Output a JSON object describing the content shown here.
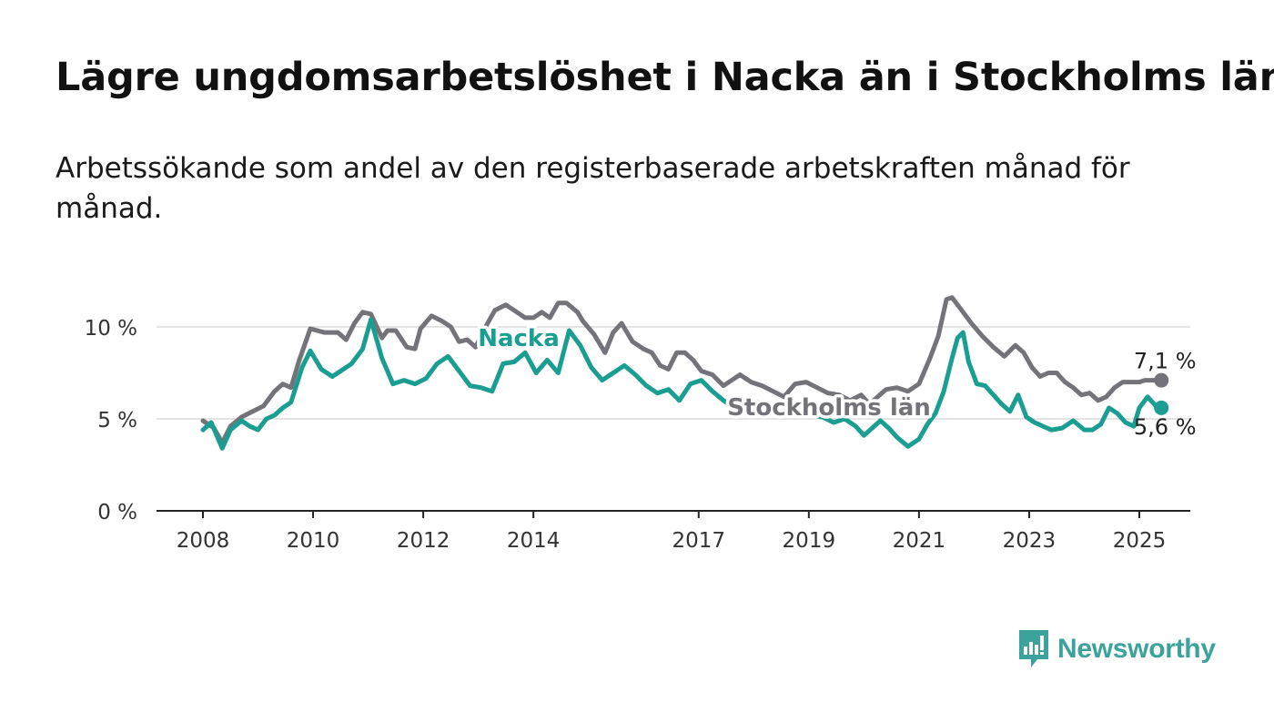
{
  "title": "Lägre ungdomsarbetslöshet i Nacka än i Stockholms län",
  "subtitle": "Arbetssökande som andel av den registerbaserade arbetskraften månad för månad.",
  "brand": {
    "name": "Newsworthy"
  },
  "chart_data": {
    "type": "line",
    "title": "Lägre ungdomsarbetslöshet i Nacka än i Stockholms län",
    "subtitle": "Arbetssökande som andel av den registerbaserade arbetskraften månad för månad.",
    "xlabel": "",
    "ylabel": "",
    "ylim": [
      0,
      12
    ],
    "xlim": [
      2007.7,
      2025.9
    ],
    "y_ticks": [
      {
        "value": 0,
        "label": "0 %"
      },
      {
        "value": 5,
        "label": "5 %"
      },
      {
        "value": 10,
        "label": "10 %"
      }
    ],
    "x_ticks": [
      {
        "value": 2008,
        "label": "2008"
      },
      {
        "value": 2010,
        "label": "2010"
      },
      {
        "value": 2012,
        "label": "2012"
      },
      {
        "value": 2014,
        "label": "2014"
      },
      {
        "value": 2017,
        "label": "2017"
      },
      {
        "value": 2019,
        "label": "2019"
      },
      {
        "value": 2021,
        "label": "2021"
      },
      {
        "value": 2023,
        "label": "2023"
      },
      {
        "value": 2025,
        "label": "2025"
      }
    ],
    "grid": true,
    "legend": "direct labels on lines",
    "end_labels": true,
    "series": [
      {
        "name": "Stockholms län",
        "color": "#74737a",
        "end_label": "7,1 %",
        "points": [
          [
            2008.0,
            4.9
          ],
          [
            2008.2,
            4.5
          ],
          [
            2008.35,
            3.7
          ],
          [
            2008.5,
            4.6
          ],
          [
            2008.7,
            5.1
          ],
          [
            2008.9,
            5.4
          ],
          [
            2009.1,
            5.7
          ],
          [
            2009.3,
            6.5
          ],
          [
            2009.45,
            6.9
          ],
          [
            2009.6,
            6.7
          ],
          [
            2009.75,
            8.2
          ],
          [
            2009.95,
            9.9
          ],
          [
            2010.2,
            9.7
          ],
          [
            2010.45,
            9.7
          ],
          [
            2010.6,
            9.3
          ],
          [
            2010.75,
            10.2
          ],
          [
            2010.9,
            10.8
          ],
          [
            2011.05,
            10.7
          ],
          [
            2011.25,
            9.4
          ],
          [
            2011.35,
            9.8
          ],
          [
            2011.5,
            9.8
          ],
          [
            2011.7,
            8.9
          ],
          [
            2011.85,
            8.8
          ],
          [
            2011.95,
            9.9
          ],
          [
            2012.15,
            10.6
          ],
          [
            2012.35,
            10.3
          ],
          [
            2012.5,
            10.0
          ],
          [
            2012.65,
            9.2
          ],
          [
            2012.8,
            9.3
          ],
          [
            2012.95,
            8.9
          ],
          [
            2013.15,
            10.1
          ],
          [
            2013.3,
            10.9
          ],
          [
            2013.5,
            11.2
          ],
          [
            2013.7,
            10.8
          ],
          [
            2013.85,
            10.5
          ],
          [
            2014.0,
            10.5
          ],
          [
            2014.15,
            10.8
          ],
          [
            2014.3,
            10.5
          ],
          [
            2014.45,
            11.3
          ],
          [
            2014.6,
            11.3
          ],
          [
            2014.8,
            10.8
          ],
          [
            2014.9,
            10.3
          ],
          [
            2015.1,
            9.6
          ],
          [
            2015.3,
            8.6
          ],
          [
            2015.45,
            9.7
          ],
          [
            2015.6,
            10.2
          ],
          [
            2015.8,
            9.2
          ],
          [
            2016.0,
            8.8
          ],
          [
            2016.15,
            8.6
          ],
          [
            2016.3,
            7.9
          ],
          [
            2016.45,
            7.7
          ],
          [
            2016.6,
            8.6
          ],
          [
            2016.75,
            8.6
          ],
          [
            2016.9,
            8.2
          ],
          [
            2017.05,
            7.6
          ],
          [
            2017.25,
            7.4
          ],
          [
            2017.45,
            6.8
          ],
          [
            2017.6,
            7.1
          ],
          [
            2017.75,
            7.4
          ],
          [
            2017.95,
            7.0
          ],
          [
            2018.15,
            6.8
          ],
          [
            2018.35,
            6.5
          ],
          [
            2018.55,
            6.2
          ],
          [
            2018.75,
            6.9
          ],
          [
            2018.95,
            7.0
          ],
          [
            2019.15,
            6.7
          ],
          [
            2019.35,
            6.4
          ],
          [
            2019.55,
            6.3
          ],
          [
            2019.75,
            6.0
          ],
          [
            2019.95,
            6.3
          ],
          [
            2020.1,
            5.8
          ],
          [
            2020.25,
            6.2
          ],
          [
            2020.4,
            6.6
          ],
          [
            2020.6,
            6.7
          ],
          [
            2020.8,
            6.5
          ],
          [
            2021.0,
            6.9
          ],
          [
            2021.2,
            8.3
          ],
          [
            2021.35,
            9.5
          ],
          [
            2021.5,
            11.5
          ],
          [
            2021.6,
            11.6
          ],
          [
            2021.75,
            11.0
          ],
          [
            2021.95,
            10.2
          ],
          [
            2022.15,
            9.5
          ],
          [
            2022.35,
            8.9
          ],
          [
            2022.55,
            8.4
          ],
          [
            2022.75,
            9.0
          ],
          [
            2022.9,
            8.6
          ],
          [
            2023.05,
            7.8
          ],
          [
            2023.2,
            7.3
          ],
          [
            2023.35,
            7.5
          ],
          [
            2023.5,
            7.5
          ],
          [
            2023.65,
            7.0
          ],
          [
            2023.8,
            6.7
          ],
          [
            2023.95,
            6.3
          ],
          [
            2024.1,
            6.4
          ],
          [
            2024.25,
            6.0
          ],
          [
            2024.4,
            6.2
          ],
          [
            2024.55,
            6.7
          ],
          [
            2024.7,
            7.0
          ],
          [
            2024.85,
            7.0
          ],
          [
            2025.0,
            7.0
          ],
          [
            2025.1,
            7.1
          ],
          [
            2025.25,
            7.1
          ],
          [
            2025.4,
            7.1
          ]
        ]
      },
      {
        "name": "Nacka",
        "color": "#1a9e92",
        "end_label": "5,6 %",
        "points": [
          [
            2008.0,
            4.4
          ],
          [
            2008.15,
            4.8
          ],
          [
            2008.35,
            3.4
          ],
          [
            2008.5,
            4.4
          ],
          [
            2008.7,
            4.9
          ],
          [
            2008.85,
            4.6
          ],
          [
            2009.0,
            4.4
          ],
          [
            2009.15,
            5.0
          ],
          [
            2009.3,
            5.2
          ],
          [
            2009.45,
            5.6
          ],
          [
            2009.6,
            5.9
          ],
          [
            2009.8,
            7.8
          ],
          [
            2009.95,
            8.7
          ],
          [
            2010.15,
            7.7
          ],
          [
            2010.35,
            7.3
          ],
          [
            2010.55,
            7.7
          ],
          [
            2010.7,
            8.0
          ],
          [
            2010.9,
            8.8
          ],
          [
            2011.05,
            10.4
          ],
          [
            2011.25,
            8.3
          ],
          [
            2011.45,
            6.9
          ],
          [
            2011.65,
            7.1
          ],
          [
            2011.85,
            6.9
          ],
          [
            2012.05,
            7.2
          ],
          [
            2012.25,
            8.0
          ],
          [
            2012.45,
            8.4
          ],
          [
            2012.65,
            7.6
          ],
          [
            2012.85,
            6.8
          ],
          [
            2013.05,
            6.7
          ],
          [
            2013.25,
            6.5
          ],
          [
            2013.45,
            8.0
          ],
          [
            2013.65,
            8.1
          ],
          [
            2013.85,
            8.6
          ],
          [
            2014.05,
            7.5
          ],
          [
            2014.25,
            8.2
          ],
          [
            2014.45,
            7.5
          ],
          [
            2014.65,
            9.8
          ],
          [
            2014.85,
            9.0
          ],
          [
            2015.05,
            7.8
          ],
          [
            2015.25,
            7.1
          ],
          [
            2015.45,
            7.5
          ],
          [
            2015.65,
            7.9
          ],
          [
            2015.85,
            7.4
          ],
          [
            2016.05,
            6.8
          ],
          [
            2016.25,
            6.4
          ],
          [
            2016.45,
            6.6
          ],
          [
            2016.65,
            6.0
          ],
          [
            2016.85,
            6.9
          ],
          [
            2017.05,
            7.1
          ],
          [
            2017.25,
            6.5
          ],
          [
            2017.45,
            6.0
          ],
          [
            2017.65,
            5.6
          ],
          [
            2017.85,
            5.3
          ],
          [
            2018.05,
            5.9
          ],
          [
            2018.25,
            5.5
          ],
          [
            2018.45,
            5.4
          ],
          [
            2018.65,
            5.4
          ],
          [
            2018.85,
            5.2
          ],
          [
            2019.05,
            5.2
          ],
          [
            2019.25,
            5.1
          ],
          [
            2019.45,
            4.8
          ],
          [
            2019.65,
            5.0
          ],
          [
            2019.85,
            4.6
          ],
          [
            2020.0,
            4.1
          ],
          [
            2020.15,
            4.5
          ],
          [
            2020.3,
            4.9
          ],
          [
            2020.45,
            4.5
          ],
          [
            2020.6,
            4.0
          ],
          [
            2020.8,
            3.5
          ],
          [
            2021.0,
            3.9
          ],
          [
            2021.15,
            4.7
          ],
          [
            2021.3,
            5.3
          ],
          [
            2021.45,
            6.5
          ],
          [
            2021.6,
            8.3
          ],
          [
            2021.7,
            9.4
          ],
          [
            2021.8,
            9.7
          ],
          [
            2021.9,
            8.1
          ],
          [
            2022.05,
            6.9
          ],
          [
            2022.2,
            6.8
          ],
          [
            2022.35,
            6.3
          ],
          [
            2022.5,
            5.8
          ],
          [
            2022.65,
            5.4
          ],
          [
            2022.8,
            6.3
          ],
          [
            2022.95,
            5.1
          ],
          [
            2023.1,
            4.8
          ],
          [
            2023.25,
            4.6
          ],
          [
            2023.4,
            4.4
          ],
          [
            2023.6,
            4.5
          ],
          [
            2023.8,
            4.9
          ],
          [
            2024.0,
            4.4
          ],
          [
            2024.15,
            4.4
          ],
          [
            2024.3,
            4.7
          ],
          [
            2024.45,
            5.6
          ],
          [
            2024.6,
            5.3
          ],
          [
            2024.75,
            4.8
          ],
          [
            2024.9,
            4.6
          ],
          [
            2025.0,
            5.6
          ],
          [
            2025.15,
            6.2
          ],
          [
            2025.3,
            5.7
          ],
          [
            2025.4,
            5.6
          ]
        ]
      }
    ]
  }
}
